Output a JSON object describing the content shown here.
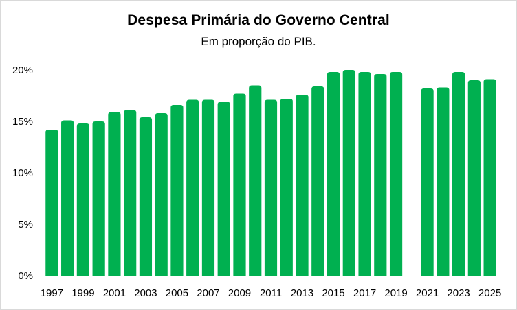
{
  "chart_data": {
    "type": "bar",
    "title": "Despesa Primária do Governo Central",
    "subtitle": "Em proporção do PIB.",
    "xlabel": "",
    "ylabel": "",
    "ylim": [
      0,
      20
    ],
    "y_ticks": [
      "0%",
      "5%",
      "10%",
      "15%",
      "20%"
    ],
    "x_tick_labels": [
      "1997",
      "1999",
      "2001",
      "2003",
      "2005",
      "2007",
      "2009",
      "2011",
      "2013",
      "2015",
      "2017",
      "2019",
      "2021",
      "2023",
      "2025"
    ],
    "categories": [
      "1997",
      "1998",
      "1999",
      "2000",
      "2001",
      "2002",
      "2003",
      "2004",
      "2005",
      "2006",
      "2007",
      "2008",
      "2009",
      "2010",
      "2011",
      "2012",
      "2013",
      "2014",
      "2015",
      "2016",
      "2017",
      "2018",
      "2019",
      "2020",
      "2021",
      "2022",
      "2023",
      "2024",
      "2025"
    ],
    "values": [
      14.2,
      15.1,
      14.8,
      15.0,
      15.9,
      16.1,
      15.4,
      15.8,
      16.6,
      17.1,
      17.1,
      16.9,
      17.7,
      18.5,
      17.1,
      17.2,
      17.6,
      18.4,
      19.8,
      20.0,
      19.8,
      19.6,
      19.8,
      null,
      18.2,
      18.3,
      19.8,
      19.0,
      19.1
    ],
    "bar_color": "#00b050",
    "grid": false,
    "legend": "none"
  }
}
